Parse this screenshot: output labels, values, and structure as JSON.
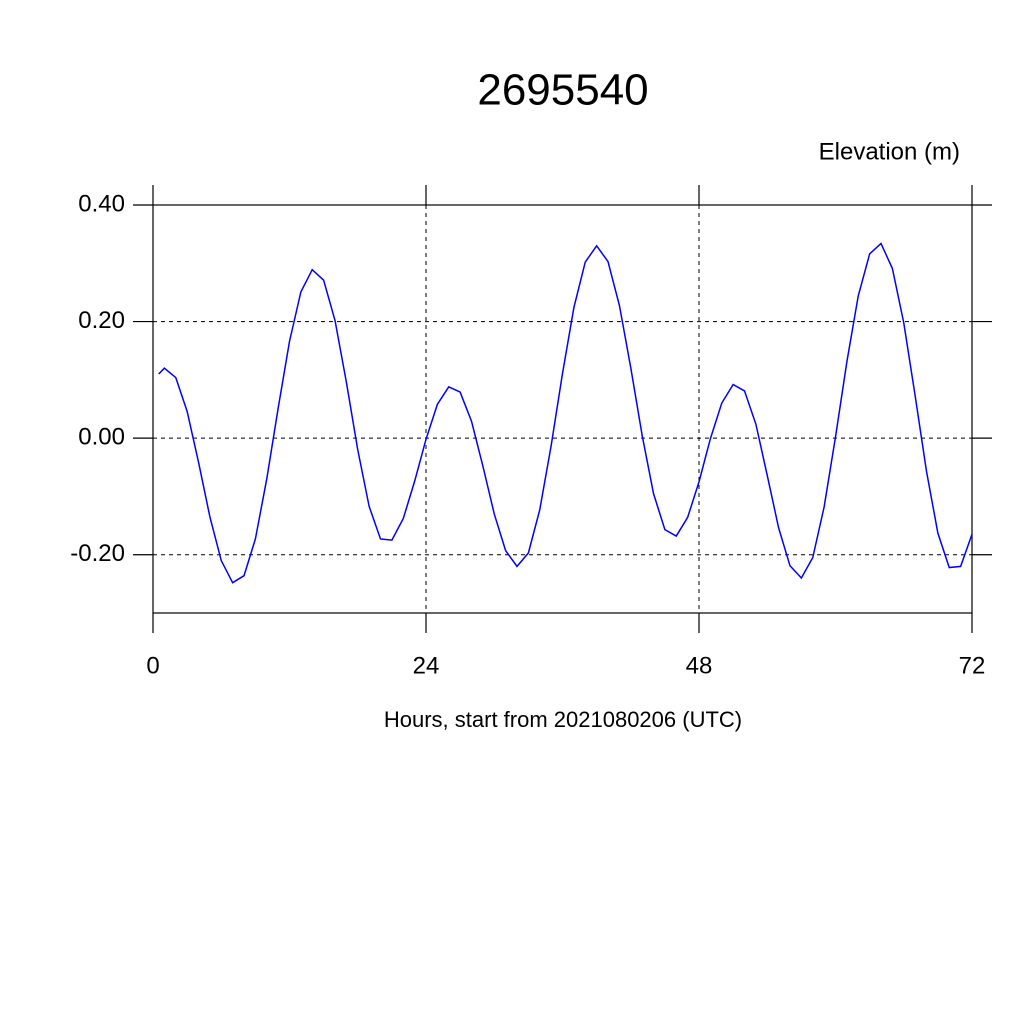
{
  "chart_data": {
    "type": "line",
    "title": "2695540",
    "y_label": "Elevation (m)",
    "x_label": "Hours, start from 2021080206 (UTC)",
    "x": [
      0.5,
      1,
      2,
      3,
      4,
      5,
      6,
      7,
      8,
      9,
      10,
      11,
      12,
      13,
      14,
      15,
      16,
      17,
      18,
      19,
      20,
      21,
      22,
      23,
      24,
      25,
      26,
      27,
      28,
      29,
      30,
      31,
      32,
      33,
      34,
      35,
      36,
      37,
      38,
      39,
      40,
      41,
      42,
      43,
      44,
      45,
      46,
      47,
      48,
      49,
      50,
      51,
      52,
      53,
      54,
      55,
      56,
      57,
      58,
      59,
      60,
      61,
      62,
      63,
      64,
      65,
      66,
      67,
      68,
      69,
      70,
      71,
      72
    ],
    "series": [
      {
        "name": "Elevation",
        "color": "#0000ff",
        "values": [
          0.11,
          0.12,
          0.104,
          0.046,
          -0.041,
          -0.135,
          -0.21,
          -0.248,
          -0.236,
          -0.173,
          -0.07,
          0.051,
          0.166,
          0.251,
          0.289,
          0.271,
          0.202,
          0.096,
          -0.02,
          -0.117,
          -0.173,
          -0.175,
          -0.138,
          -0.074,
          -0.002,
          0.058,
          0.088,
          0.079,
          0.029,
          -0.048,
          -0.13,
          -0.193,
          -0.22,
          -0.197,
          -0.123,
          -0.013,
          0.111,
          0.224,
          0.302,
          0.33,
          0.303,
          0.228,
          0.121,
          0.005,
          -0.095,
          -0.157,
          -0.168,
          -0.136,
          -0.075,
          -0.001,
          0.06,
          0.092,
          0.081,
          0.024,
          -0.064,
          -0.154,
          -0.219,
          -0.24,
          -0.205,
          -0.118,
          0.002,
          0.131,
          0.244,
          0.316,
          0.334,
          0.291,
          0.198,
          0.073,
          -0.057,
          -0.163,
          -0.222,
          -0.22,
          -0.165
        ]
      }
    ],
    "xlim": [
      0,
      72
    ],
    "xticks": [
      0,
      24,
      48,
      72
    ],
    "ylim": [
      -0.3,
      0.4
    ],
    "yticks": [
      {
        "value": -0.2,
        "label": "-0.20"
      },
      {
        "value": 0,
        "label": "0.00"
      },
      {
        "value": 0.2,
        "label": "0.20"
      },
      {
        "value": 0.4,
        "label": "0.40"
      }
    ],
    "grid": true
  }
}
